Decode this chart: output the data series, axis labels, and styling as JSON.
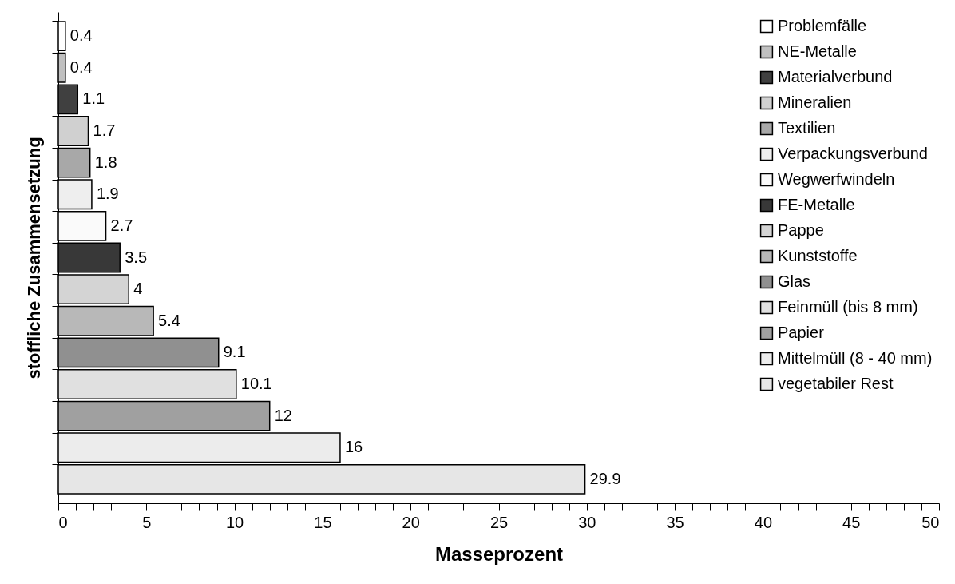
{
  "chart_data": {
    "type": "bar",
    "orientation": "horizontal",
    "xlabel": "Masseprozent",
    "ylabel": "stoffliche Zusammensetzung",
    "categories": [
      null,
      null,
      null,
      null,
      null,
      null,
      null,
      null,
      null,
      null,
      null,
      null,
      null,
      null,
      null
    ],
    "series": [
      {
        "name": "Problemfälle",
        "color": "#ffffff",
        "values": [
          0.4,
          null,
          null,
          null,
          null,
          null,
          null,
          null,
          null,
          null,
          null,
          null,
          null,
          null,
          null
        ]
      },
      {
        "name": "NE-Metalle",
        "color": "#c0c0c0",
        "values": [
          null,
          0.4,
          null,
          null,
          null,
          null,
          null,
          null,
          null,
          null,
          null,
          null,
          null,
          null,
          null
        ]
      },
      {
        "name": "Materialverbund",
        "color": "#404040",
        "values": [
          null,
          null,
          1.1,
          null,
          null,
          null,
          null,
          null,
          null,
          null,
          null,
          null,
          null,
          null,
          null
        ]
      },
      {
        "name": "Mineralien",
        "color": "#d0d0d0",
        "values": [
          null,
          null,
          null,
          1.7,
          null,
          null,
          null,
          null,
          null,
          null,
          null,
          null,
          null,
          null,
          null
        ]
      },
      {
        "name": "Textilien",
        "color": "#a8a8a8",
        "values": [
          null,
          null,
          null,
          null,
          1.8,
          null,
          null,
          null,
          null,
          null,
          null,
          null,
          null,
          null,
          null
        ]
      },
      {
        "name": "Verpackungsverbund",
        "color": "#eeeeee",
        "values": [
          null,
          null,
          null,
          null,
          null,
          1.9,
          null,
          null,
          null,
          null,
          null,
          null,
          null,
          null,
          null
        ]
      },
      {
        "name": "Wegwerfwindeln",
        "color": "#fafafa",
        "values": [
          null,
          null,
          null,
          null,
          null,
          null,
          2.7,
          null,
          null,
          null,
          null,
          null,
          null,
          null,
          null
        ]
      },
      {
        "name": "FE-Metalle",
        "color": "#383838",
        "values": [
          null,
          null,
          null,
          null,
          null,
          null,
          null,
          3.5,
          null,
          null,
          null,
          null,
          null,
          null,
          null
        ]
      },
      {
        "name": "Pappe",
        "color": "#d4d4d4",
        "values": [
          null,
          null,
          null,
          null,
          null,
          null,
          null,
          null,
          4,
          null,
          null,
          null,
          null,
          null,
          null
        ]
      },
      {
        "name": "Kunststoffe",
        "color": "#b8b8b8",
        "values": [
          null,
          null,
          null,
          null,
          null,
          null,
          null,
          null,
          null,
          5.4,
          null,
          null,
          null,
          null,
          null
        ]
      },
      {
        "name": "Glas",
        "color": "#909090",
        "values": [
          null,
          null,
          null,
          null,
          null,
          null,
          null,
          null,
          null,
          null,
          9.1,
          null,
          null,
          null,
          null
        ]
      },
      {
        "name": "Feinmüll (bis 8 mm)",
        "color": "#e0e0e0",
        "values": [
          null,
          null,
          null,
          null,
          null,
          null,
          null,
          null,
          null,
          null,
          null,
          10.1,
          null,
          null,
          null
        ]
      },
      {
        "name": "Papier",
        "color": "#a0a0a0",
        "values": [
          null,
          null,
          null,
          null,
          null,
          null,
          null,
          null,
          null,
          null,
          null,
          null,
          12,
          null,
          null
        ]
      },
      {
        "name": "Mittelmüll (8 - 40 mm)",
        "color": "#ececec",
        "values": [
          null,
          null,
          null,
          null,
          null,
          null,
          null,
          null,
          null,
          null,
          null,
          null,
          null,
          16,
          null
        ]
      },
      {
        "name": "vegetabiler Rest",
        "color": "#e6e6e6",
        "values": [
          null,
          null,
          null,
          null,
          null,
          null,
          null,
          null,
          null,
          null,
          null,
          null,
          null,
          null,
          29.9
        ]
      }
    ],
    "xlim": [
      0,
      50
    ],
    "xticks": [
      0,
      {
        "value": 1,
        "label": null
      },
      {
        "value": 2,
        "label": null
      },
      {
        "value": 3,
        "label": null
      },
      {
        "value": 4,
        "label": null
      },
      5,
      {
        "value": 6,
        "label": null
      },
      {
        "value": 7,
        "label": null
      },
      {
        "value": 8,
        "label": null
      },
      {
        "value": 9,
        "label": null
      },
      10,
      {
        "value": 11,
        "label": null
      },
      {
        "value": 12,
        "label": null
      },
      {
        "value": 13,
        "label": null
      },
      {
        "value": 14,
        "label": null
      },
      15,
      {
        "value": 16,
        "label": null
      },
      {
        "value": 17,
        "label": null
      },
      {
        "value": 18,
        "label": null
      },
      {
        "value": 19,
        "label": null
      },
      20,
      {
        "value": 21,
        "label": null
      },
      {
        "value": 22,
        "label": null
      },
      {
        "value": 23,
        "label": null
      },
      {
        "value": 24,
        "label": null
      },
      25,
      {
        "value": 26,
        "label": null
      },
      {
        "value": 27,
        "label": null
      },
      {
        "value": 28,
        "label": null
      },
      {
        "value": 29,
        "label": null
      },
      30,
      {
        "value": 31,
        "label": null
      },
      {
        "value": 32,
        "label": null
      },
      {
        "value": 33,
        "label": null
      },
      {
        "value": 34,
        "label": null
      },
      35,
      {
        "value": 36,
        "label": null
      },
      {
        "value": 37,
        "label": null
      },
      {
        "value": 38,
        "label": null
      },
      {
        "value": 39,
        "label": null
      },
      40,
      {
        "value": 41,
        "label": null
      },
      {
        "value": 42,
        "label": null
      },
      {
        "value": 43,
        "label": null
      },
      {
        "value": 44,
        "label": null
      },
      45,
      {
        "value": 46,
        "label": null
      },
      {
        "value": 47,
        "label": null
      },
      {
        "value": 48,
        "label": null
      },
      {
        "value": 49,
        "label": null
      },
      50
    ],
    "tick_labels": "x",
    "legend": "right",
    "data_labels": true,
    "grid": false
  }
}
